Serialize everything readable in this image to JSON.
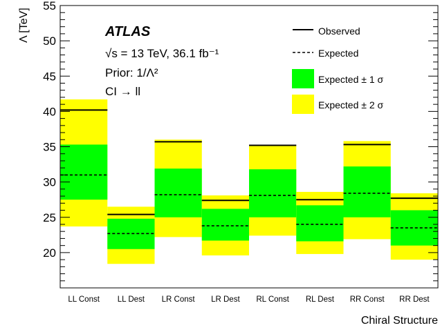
{
  "chart_data": {
    "type": "bar",
    "experiment_label": "ATLAS",
    "info_lines": {
      "energy": "√s = 13 TeV, 36.1 fb⁻¹",
      "prior": "Prior: 1/Λ²",
      "process": "CI → ll"
    },
    "xlabel": "Chiral Structure",
    "ylabel": "Λ [TeV]",
    "ylim": [
      15,
      55
    ],
    "yticks": [
      20,
      25,
      30,
      35,
      40,
      45,
      50,
      55
    ],
    "categories": [
      "LL Const",
      "LL Dest",
      "LR Const",
      "LR Dest",
      "RL Const",
      "RL Dest",
      "RR Const",
      "RR Dest"
    ],
    "series": [
      {
        "name": "Observed",
        "values": [
          40.2,
          25.4,
          35.7,
          27.4,
          35.2,
          27.5,
          35.3,
          27.7
        ]
      },
      {
        "name": "Expected",
        "values": [
          31.0,
          22.7,
          28.2,
          23.8,
          28.1,
          24.0,
          28.4,
          23.5
        ]
      },
      {
        "name": "Expected ± 1 σ",
        "low": [
          27.5,
          20.5,
          25.0,
          21.7,
          25.0,
          21.6,
          25.0,
          21.0
        ],
        "high": [
          35.3,
          24.8,
          31.9,
          26.2,
          31.8,
          26.7,
          32.2,
          26.0
        ]
      },
      {
        "name": "Expected ± 2 σ",
        "low": [
          23.7,
          18.4,
          22.2,
          19.6,
          22.4,
          19.8,
          21.9,
          19.0
        ],
        "high": [
          41.7,
          26.5,
          36.0,
          28.1,
          35.2,
          28.6,
          35.8,
          28.4
        ]
      }
    ],
    "colors": {
      "band1": "#00ff00",
      "band2": "#ffff00",
      "line": "#000000"
    },
    "legend": {
      "placement": "top-right",
      "entries": [
        "Observed",
        "Expected",
        "Expected ± 1 σ",
        "Expected ± 2 σ"
      ]
    },
    "grid": false
  }
}
